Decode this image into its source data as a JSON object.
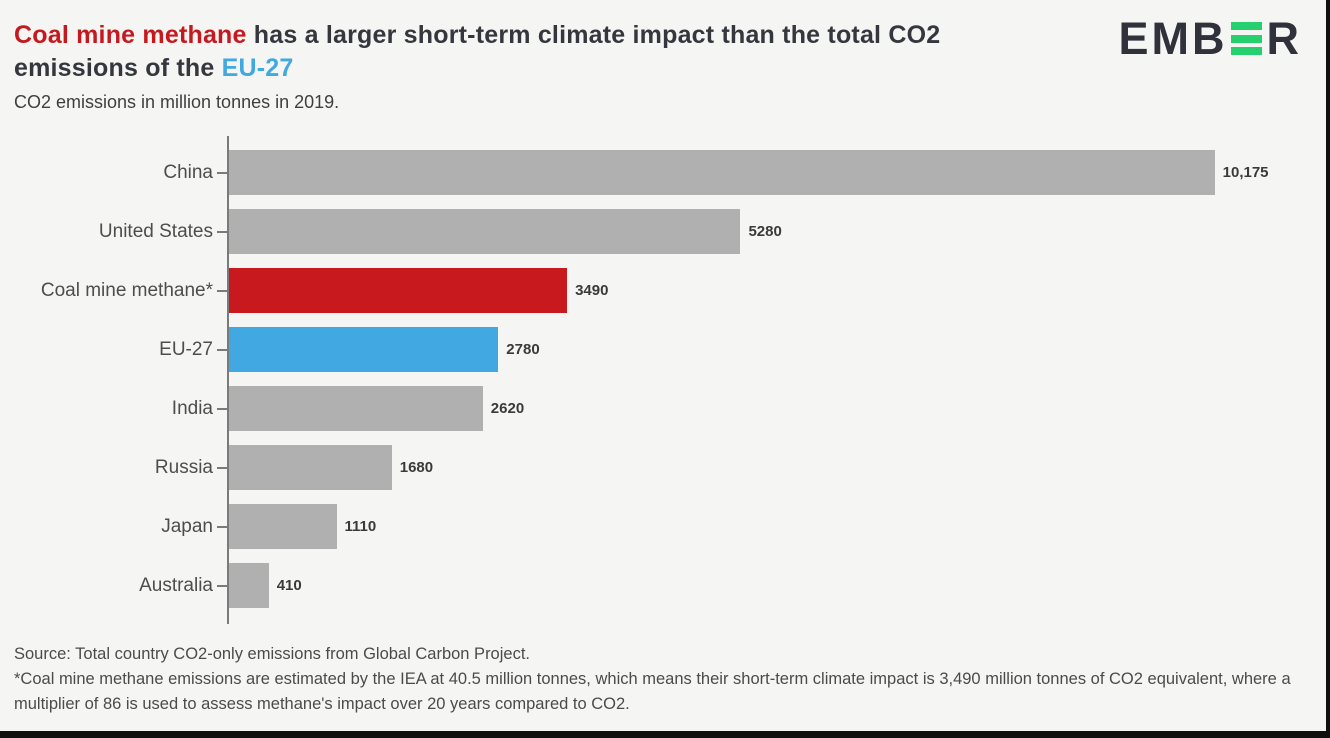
{
  "header": {
    "title_line1_highlight": "Coal mine methane",
    "title_line1_rest": " has a larger short-term climate impact than the total CO2",
    "title_line2_pre": "emissions of the ",
    "title_line2_highlight": "EU-27",
    "subtitle": "CO2 emissions in million tonnes in 2019."
  },
  "logo": {
    "name": "EMBER",
    "left": "EMB",
    "right": "R",
    "green": "#27d06e",
    "dark": "#2f323a"
  },
  "chart_data": {
    "type": "bar",
    "orientation": "horizontal",
    "title": "Coal mine methane has a larger short-term climate impact than the total CO2 emissions of the EU-27",
    "subtitle": "CO2 emissions in million tonnes in 2019.",
    "xlabel": "",
    "ylabel": "",
    "xlim": [
      0,
      11180
    ],
    "grid": false,
    "legend": false,
    "categories": [
      "China",
      "United States",
      "Coal mine methane*",
      "EU-27",
      "India",
      "Russia",
      "Japan",
      "Australia"
    ],
    "values": [
      10175,
      5280,
      3490,
      2780,
      2620,
      1680,
      1110,
      410
    ],
    "value_labels": [
      "10,175",
      "5280",
      "3490",
      "2780",
      "2620",
      "1680",
      "1110",
      "410"
    ],
    "bar_colors": [
      "#b0b0b0",
      "#b0b0b0",
      "#c8191e",
      "#41a8e1",
      "#b0b0b0",
      "#b0b0b0",
      "#b0b0b0",
      "#b0b0b0"
    ],
    "highlight_red": "#c8191e",
    "highlight_blue": "#41a8e1",
    "default_bar_color": "#b0b0b0"
  },
  "footer": {
    "source": "Source: Total country CO2-only emissions from Global Carbon Project.",
    "note": "*Coal mine methane emissions are estimated by the IEA at 40.5 million tonnes, which means their short-term climate impact is 3,490 million tonnes of CO2 equivalent, where a multiplier of 86 is used to assess methane's impact over 20 years compared to CO2."
  },
  "colors": {
    "background": "#f5f5f3",
    "title_text": "#35373e",
    "axis": "#7a7a7a",
    "category_label": "#4d4d4d",
    "value_label": "#3a3a3a",
    "footer_text": "#4b4b4b",
    "border": "#101010"
  }
}
